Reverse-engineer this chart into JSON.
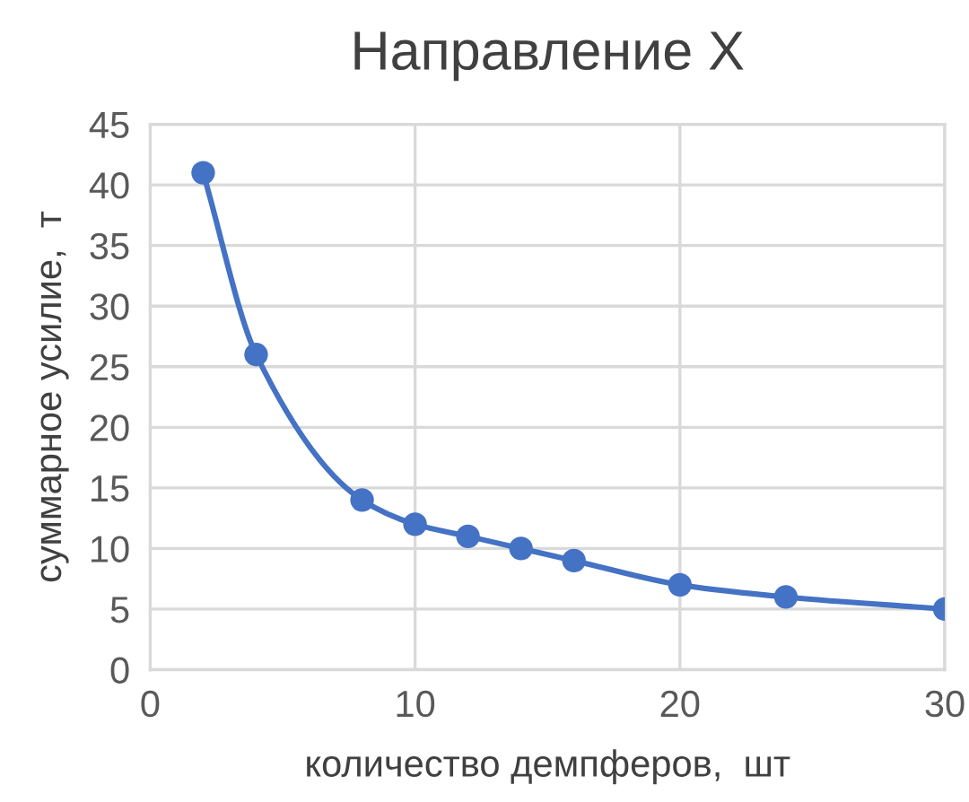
{
  "chart_data": {
    "type": "line",
    "title": "Направление X",
    "xlabel": "количество демпферов,  шт",
    "ylabel": "суммарное усилие,  т",
    "x": [
      2,
      4,
      8,
      10,
      12,
      14,
      16,
      20,
      24,
      30
    ],
    "series": [
      {
        "color": "#4472c4",
        "values": [
          41,
          26,
          14,
          12,
          11,
          10,
          9,
          7,
          6,
          5
        ]
      }
    ],
    "xlim": [
      0,
      30
    ],
    "xticks": [
      0,
      10,
      20,
      30
    ],
    "ylim": [
      0,
      45
    ],
    "yticks": [
      0,
      5,
      10,
      15,
      20,
      25,
      30,
      35,
      40,
      45
    ],
    "grid": true,
    "marker": "circle",
    "line_style": "solid",
    "legend": false
  }
}
